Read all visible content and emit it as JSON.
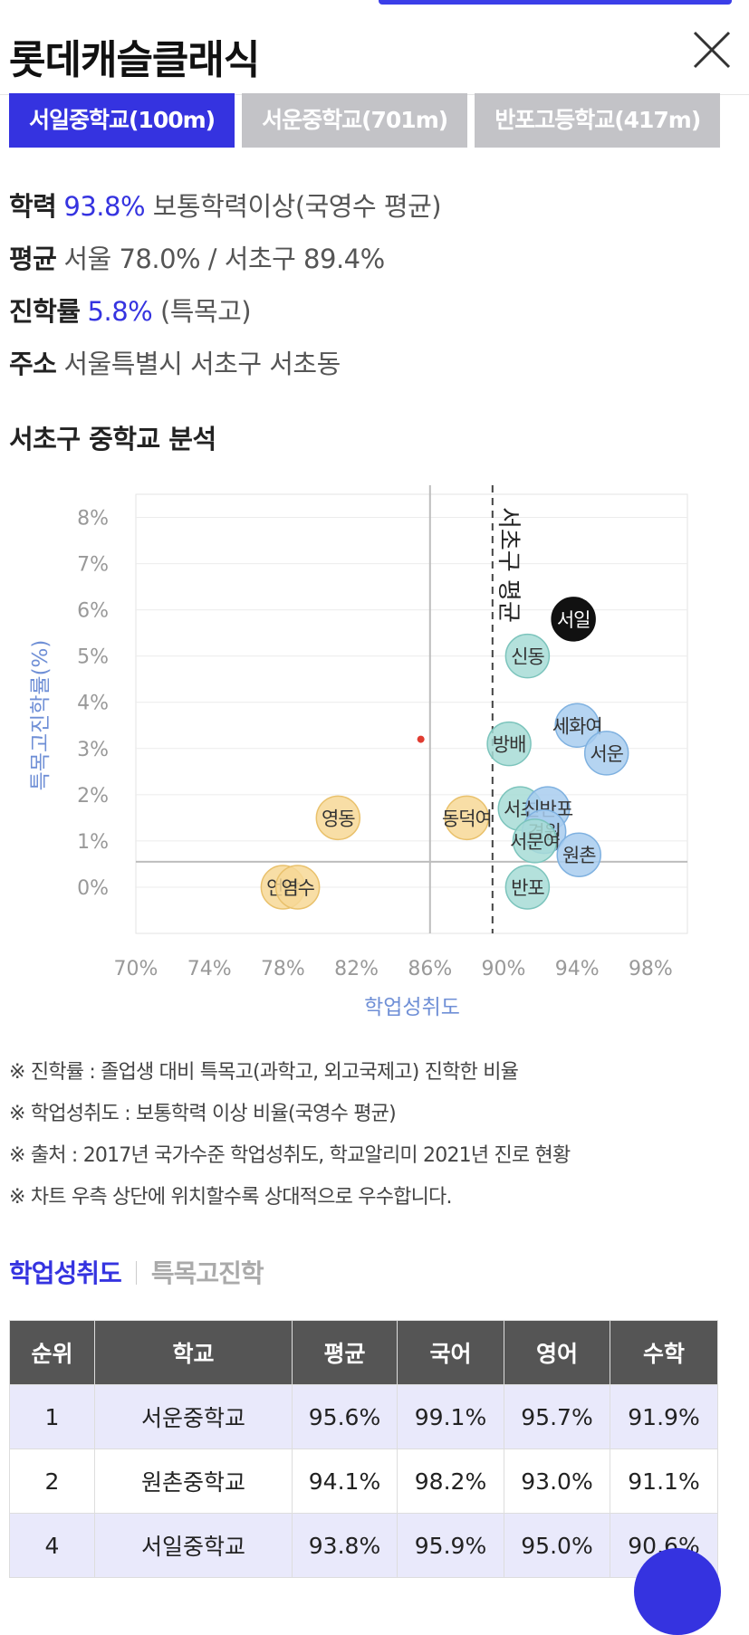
{
  "header": {
    "title": "롯데캐슬클래식"
  },
  "tabs": [
    {
      "label": "서일중학교(100m)",
      "active": true
    },
    {
      "label": "서운중학교(701m)",
      "active": false
    },
    {
      "label": "반포고등학교(417m)",
      "active": false
    }
  ],
  "info": {
    "achievement": {
      "label": "학력",
      "value": "93.8%",
      "desc": "보통학력이상(국영수 평균)"
    },
    "average": {
      "label": "평균",
      "value": "서울 78.0% / 서초구 89.4%"
    },
    "advancement": {
      "label": "진학률",
      "value": "5.8%",
      "desc": "(특목고)"
    },
    "address": {
      "label": "주소",
      "value": "서울특별시 서초구 서초동"
    }
  },
  "section_title": "서초구 중학교 분석",
  "chart_data": {
    "type": "scatter",
    "xlabel": "학업성취도",
    "ylabel": "특목고진학률(%)",
    "xlim": [
      70,
      100
    ],
    "ylim": [
      -1,
      8.5
    ],
    "xticks": [
      "70%",
      "74%",
      "78%",
      "82%",
      "86%",
      "90%",
      "94%",
      "98%"
    ],
    "yticks": [
      "0%",
      "1%",
      "2%",
      "3%",
      "4%",
      "5%",
      "6%",
      "7%",
      "8%"
    ],
    "reference_line": {
      "label": "서초구 평균",
      "x": 89.4
    },
    "colors": {
      "seocho": "#a7dcd6",
      "seocho_stroke": "#7cc4bc",
      "highachieve": "#a8cdee",
      "highachieve_stroke": "#7fb1e0",
      "other": "#f7d896",
      "other_stroke": "#e9c16c",
      "selected": "#111111",
      "marker": "#e03c31",
      "line": "#bdbdbd"
    },
    "points": [
      {
        "name": "서일",
        "x": 93.8,
        "y": 5.8,
        "group": "selected"
      },
      {
        "name": "신동",
        "x": 91.3,
        "y": 5.0,
        "group": "seocho"
      },
      {
        "name": "세화여",
        "x": 94.0,
        "y": 3.5,
        "group": "highachieve"
      },
      {
        "name": "서운",
        "x": 95.6,
        "y": 2.9,
        "group": "highachieve"
      },
      {
        "name": "방배",
        "x": 90.3,
        "y": 3.1,
        "group": "seocho"
      },
      {
        "name": "영동",
        "x": 81.0,
        "y": 1.5,
        "group": "other"
      },
      {
        "name": "동덕여",
        "x": 88.0,
        "y": 1.5,
        "group": "other"
      },
      {
        "name": "서초",
        "x": 90.9,
        "y": 1.7,
        "group": "seocho"
      },
      {
        "name": "신반포",
        "x": 92.4,
        "y": 1.7,
        "group": "highachieve"
      },
      {
        "name": "경원",
        "x": 92.2,
        "y": 1.2,
        "group": "highachieve"
      },
      {
        "name": "서문여",
        "x": 91.7,
        "y": 1.0,
        "group": "seocho"
      },
      {
        "name": "원촌",
        "x": 94.1,
        "y": 0.7,
        "group": "highachieve"
      },
      {
        "name": "반포",
        "x": 91.3,
        "y": 0.0,
        "group": "seocho"
      },
      {
        "name": "언남",
        "x": 78.0,
        "y": 0.0,
        "group": "other"
      },
      {
        "name": "염수",
        "x": 78.8,
        "y": 0.0,
        "group": "other"
      }
    ],
    "markers": [
      {
        "x": 85.5,
        "y": 3.2
      }
    ],
    "crosshair": {
      "x": 86.0,
      "y": 0.55
    }
  },
  "notes": [
    "※ 진학률 : 졸업생 대비 특목고(과학고, 외고국제고) 진학한 비율",
    "※ 학업성취도 : 보통학력 이상 비율(국영수 평균)",
    "※ 출처 : 2017년 국가수준 학업성취도, 학교알리미 2021년 진로 현황",
    "※ 차트 우측 상단에 위치할수록 상대적으로 우수합니다."
  ],
  "subtabs": [
    {
      "label": "학업성취도",
      "active": true
    },
    {
      "label": "특목고진학",
      "active": false
    }
  ],
  "table": {
    "headers": [
      "순위",
      "학교",
      "평균",
      "국어",
      "영어",
      "수학"
    ],
    "rows": [
      {
        "rank": "1",
        "school": "서운중학교",
        "avg": "95.6%",
        "kor": "99.1%",
        "eng": "95.7%",
        "math": "91.9%",
        "highlight": true
      },
      {
        "rank": "2",
        "school": "원촌중학교",
        "avg": "94.1%",
        "kor": "98.2%",
        "eng": "93.0%",
        "math": "91.1%",
        "highlight": false
      },
      {
        "rank": "4",
        "school": "서일중학교",
        "avg": "93.8%",
        "kor": "95.9%",
        "eng": "95.0%",
        "math": "90.6%",
        "highlight": true
      }
    ]
  }
}
